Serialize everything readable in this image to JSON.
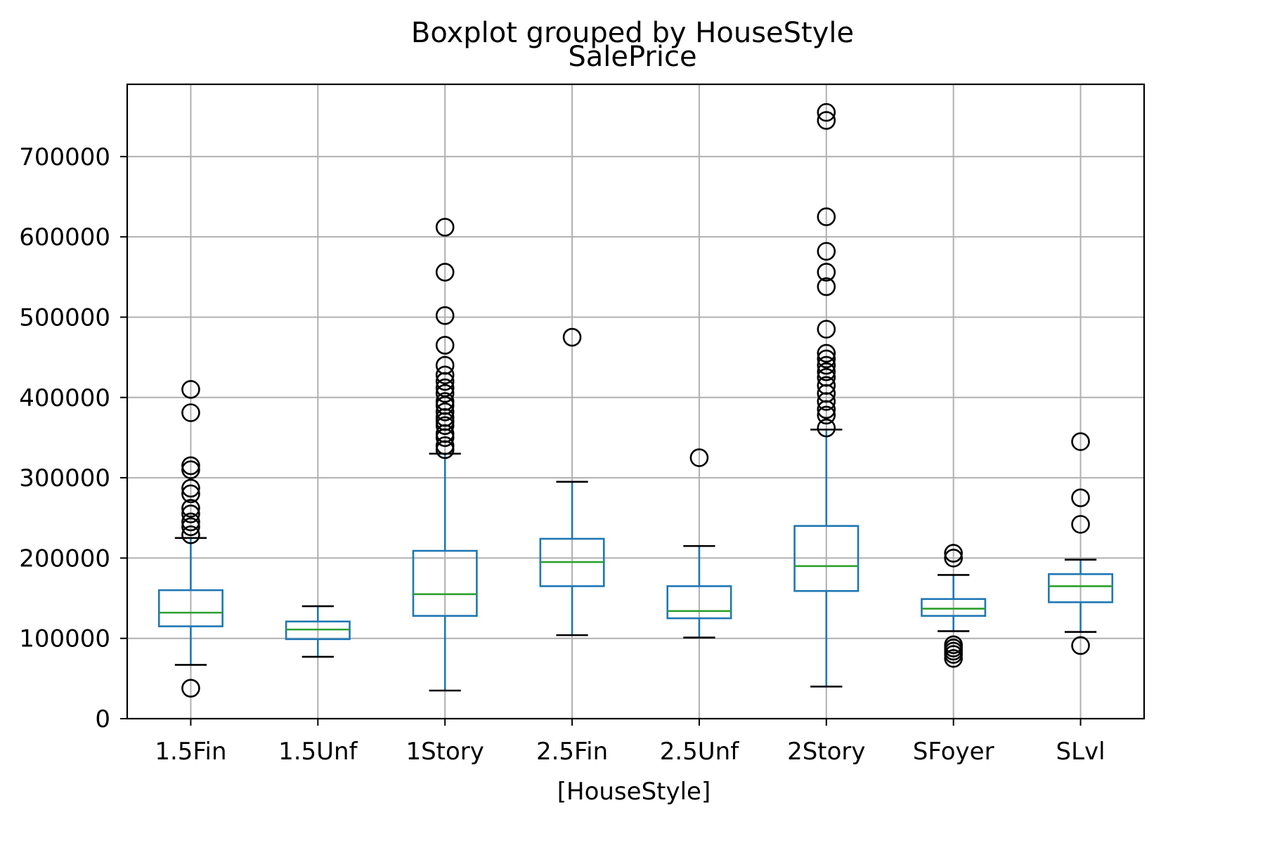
{
  "chart_data": {
    "type": "boxplot",
    "suptitle": "Boxplot grouped by HouseStyle",
    "title": "SalePrice",
    "xlabel": "[HouseStyle]",
    "ylabel": "",
    "ylim": [
      0,
      790000
    ],
    "yticks": [
      0,
      100000,
      200000,
      300000,
      400000,
      500000,
      600000,
      700000
    ],
    "ytick_labels": [
      "0",
      "100000",
      "200000",
      "300000",
      "400000",
      "500000",
      "600000",
      "700000"
    ],
    "grid": true,
    "colors": {
      "box": "#1f77b4",
      "median": "#2ca02c",
      "whisker": "#1f77b4",
      "cap": "#000000",
      "flier": "#000000",
      "grid": "#b0b0b0"
    },
    "categories": [
      "1.5Fin",
      "1.5Unf",
      "1Story",
      "2.5Fin",
      "2.5Unf",
      "2Story",
      "SFoyer",
      "SLvl"
    ],
    "boxes": [
      {
        "category": "1.5Fin",
        "whislo": 67000,
        "q1": 115000,
        "med": 132000,
        "q3": 160000,
        "whishi": 225000,
        "fliers": [
          37900,
          229000,
          239000,
          245000,
          255000,
          262000,
          280000,
          287000,
          310000,
          315000,
          381000,
          410000
        ]
      },
      {
        "category": "1.5Unf",
        "whislo": 77000,
        "q1": 99000,
        "med": 111000,
        "q3": 121000,
        "whishi": 140000,
        "fliers": []
      },
      {
        "category": "1Story",
        "whislo": 35000,
        "q1": 128000,
        "med": 155000,
        "q3": 209000,
        "whishi": 330000,
        "fliers": [
          335000,
          340000,
          350000,
          355000,
          365000,
          370000,
          375000,
          382000,
          390000,
          395000,
          405000,
          412000,
          420000,
          428000,
          440000,
          465000,
          502000,
          556000,
          612000
        ]
      },
      {
        "category": "2.5Fin",
        "whislo": 104000,
        "q1": 165000,
        "med": 195000,
        "q3": 224000,
        "whishi": 295000,
        "fliers": [
          475000
        ]
      },
      {
        "category": "2.5Unf",
        "whislo": 101000,
        "q1": 125000,
        "med": 134000,
        "q3": 165000,
        "whishi": 215000,
        "fliers": [
          325000
        ]
      },
      {
        "category": "2Story",
        "whislo": 40000,
        "q1": 159000,
        "med": 190000,
        "q3": 240000,
        "whishi": 360000,
        "fliers": [
          362000,
          378000,
          385000,
          395000,
          405000,
          415000,
          425000,
          432000,
          440000,
          448000,
          455000,
          485000,
          538000,
          556000,
          582000,
          625000,
          745000,
          755000
        ]
      },
      {
        "category": "SFoyer",
        "whislo": 109000,
        "q1": 128000,
        "med": 137000,
        "q3": 149000,
        "whishi": 179000,
        "fliers": [
          75000,
          80000,
          84000,
          88000,
          92000,
          200000,
          206000
        ]
      },
      {
        "category": "SLvl",
        "whislo": 108000,
        "q1": 145000,
        "med": 165000,
        "q3": 180000,
        "whishi": 198000,
        "fliers": [
          91000,
          242000,
          275000,
          345000
        ]
      }
    ]
  }
}
